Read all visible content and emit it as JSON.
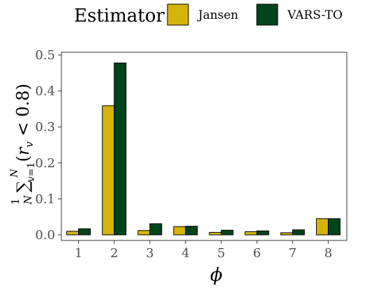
{
  "chart_data": {
    "type": "bar",
    "legend": {
      "title": "Estimator",
      "placement": "top"
    },
    "xlabel": "ϕ",
    "ylabel": "(1/N) Σ_{v=1}^{N} (r_v < 0.8)",
    "categories": [
      "1",
      "2",
      "3",
      "4",
      "5",
      "6",
      "7",
      "8"
    ],
    "series": [
      {
        "name": "Jansen",
        "color": "#D4B40A",
        "values": [
          0.01,
          0.359,
          0.012,
          0.023,
          0.007,
          0.009,
          0.006,
          0.045
        ]
      },
      {
        "name": "VARS-TO",
        "color": "#00441B",
        "values": [
          0.017,
          0.478,
          0.031,
          0.024,
          0.013,
          0.011,
          0.014,
          0.045
        ]
      }
    ],
    "ylim": [
      0,
      0.5
    ],
    "yticks": [
      "0.0",
      "0.1",
      "0.2",
      "0.3",
      "0.4",
      "0.5"
    ],
    "grid": false
  }
}
